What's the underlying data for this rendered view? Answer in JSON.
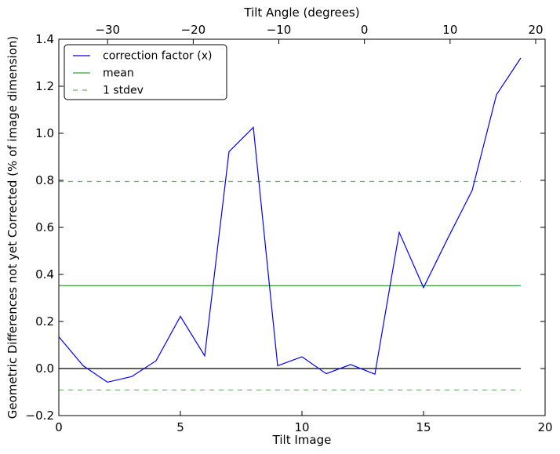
{
  "chart_data": {
    "type": "line",
    "xlabel": "Tilt Image",
    "ylabel": "Geometric Differences not yet Corrected (% of image dimension)",
    "top_xlabel": "Tilt Angle (degrees)",
    "xlim": [
      0,
      20
    ],
    "ylim": [
      -0.2,
      1.4
    ],
    "top_xlim": [
      -35.7,
      21.1
    ],
    "x_ticks": [
      0,
      5,
      10,
      15,
      20
    ],
    "y_ticks": [
      -0.2,
      0.0,
      0.2,
      0.4,
      0.6,
      0.8,
      1.0,
      1.2,
      1.4
    ],
    "top_x_ticks": [
      -30,
      -20,
      -10,
      0,
      10,
      20
    ],
    "x_tick_labels": [
      "0",
      "5",
      "10",
      "15",
      "20"
    ],
    "y_tick_labels": [
      "−0.2",
      "0.0",
      "0.2",
      "0.4",
      "0.6",
      "0.8",
      "1.0",
      "1.2",
      "1.4"
    ],
    "top_x_tick_labels": [
      "−30",
      "−20",
      "−10",
      "0",
      "10",
      "20"
    ],
    "grid": false,
    "legend_position": "top-left",
    "series": [
      {
        "name": "correction factor (x)",
        "style": "solid",
        "color": "#0000ff",
        "x": [
          0,
          1,
          2,
          3,
          4,
          5,
          6,
          7,
          8,
          9,
          10,
          11,
          12,
          13,
          14,
          15,
          16,
          17,
          18,
          19
        ],
        "y": [
          0.135,
          0.012,
          -0.058,
          -0.034,
          0.033,
          0.222,
          0.054,
          0.922,
          1.025,
          0.012,
          0.05,
          -0.022,
          0.017,
          -0.024,
          0.579,
          0.344,
          0.554,
          0.757,
          1.164,
          1.32
        ]
      },
      {
        "name": "mean",
        "style": "solid",
        "color": "#3c9e3c",
        "x": [
          0,
          19
        ],
        "y": [
          0.352,
          0.352
        ]
      },
      {
        "name": "1 stdev",
        "style": "dashed",
        "color": "#5cb85c",
        "x": [
          0,
          19
        ],
        "y": [
          0.795,
          0.795
        ],
        "y2": [
          -0.091,
          -0.091
        ]
      },
      {
        "style": "solid",
        "color": "#000000",
        "x": [
          0,
          19
        ],
        "y": [
          0.0,
          0.0
        ]
      }
    ]
  }
}
